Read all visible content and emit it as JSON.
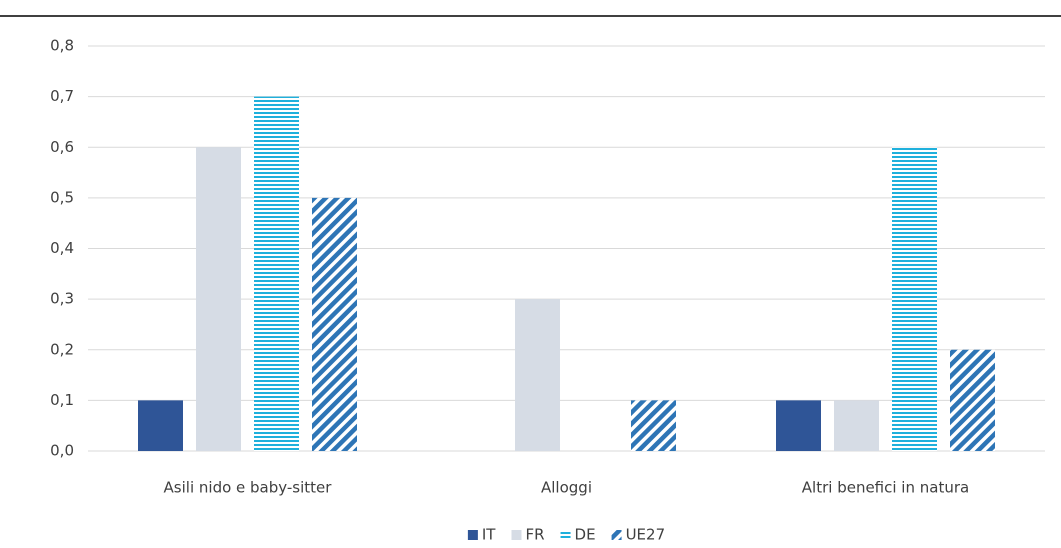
{
  "chart_data": {
    "type": "bar",
    "categories": [
      "Asili nido e baby-sitter",
      "Alloggi",
      "Altri benefici in natura"
    ],
    "series": [
      {
        "name": "IT",
        "color": "#2f5597",
        "pattern": "solid",
        "values": [
          0.1,
          0,
          0.1
        ]
      },
      {
        "name": "FR",
        "color": "#d6dce5",
        "pattern": "solid",
        "values": [
          0.6,
          0.3,
          0.1
        ]
      },
      {
        "name": "DE",
        "color": "#1fb0dc",
        "pattern": "horizontal",
        "values": [
          0.7,
          0,
          0.6
        ]
      },
      {
        "name": "UE27",
        "color": "#2e75b6",
        "pattern": "diagonal",
        "values": [
          0.5,
          0.1,
          0.2
        ]
      }
    ],
    "ylim": [
      0,
      0.8
    ],
    "yticks": [
      {
        "value": 0,
        "label": "0,0"
      },
      {
        "value": 0.1,
        "label": "0,1"
      },
      {
        "value": 0.2,
        "label": "0,2"
      },
      {
        "value": 0.3,
        "label": "0,3"
      },
      {
        "value": 0.4,
        "label": "0,4"
      },
      {
        "value": 0.5,
        "label": "0,5"
      },
      {
        "value": 0.6,
        "label": "0,6"
      },
      {
        "value": 0.7,
        "label": "0,7"
      },
      {
        "value": 0.8,
        "label": "0,8"
      }
    ],
    "grid": true,
    "legend": "bottom"
  }
}
